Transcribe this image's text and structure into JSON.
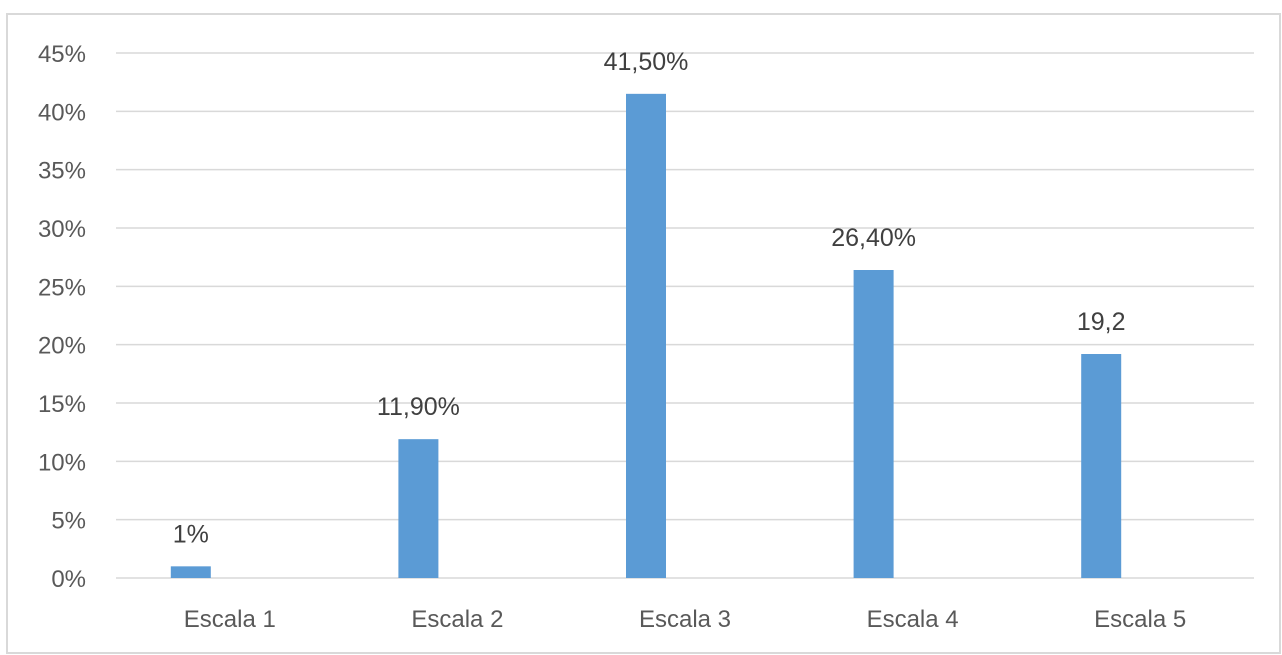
{
  "chart_data": {
    "type": "bar",
    "title": "",
    "xlabel": "",
    "ylabel": "",
    "categories": [
      "Escala 1",
      "Escala 2",
      "Escala 3",
      "Escala 4",
      "Escala 5"
    ],
    "values": [
      1,
      11.9,
      41.5,
      26.4,
      19.2
    ],
    "data_labels": [
      "1%",
      "11,90%",
      "41,50%",
      "26,40%",
      "19,2"
    ],
    "ylim": [
      0,
      45
    ],
    "yticks": [
      0,
      5,
      10,
      15,
      20,
      25,
      30,
      35,
      40,
      45
    ],
    "ytick_labels": [
      "0%",
      "5%",
      "10%",
      "15%",
      "20%",
      "25%",
      "30%",
      "35%",
      "40%",
      "45%"
    ],
    "grid": true,
    "legend": "none",
    "colors": {
      "bar": "#5b9bd5",
      "grid": "#d9d9d9",
      "frame": "#d9d9d9",
      "tick_text": "#595959",
      "label_text": "#404040"
    }
  }
}
